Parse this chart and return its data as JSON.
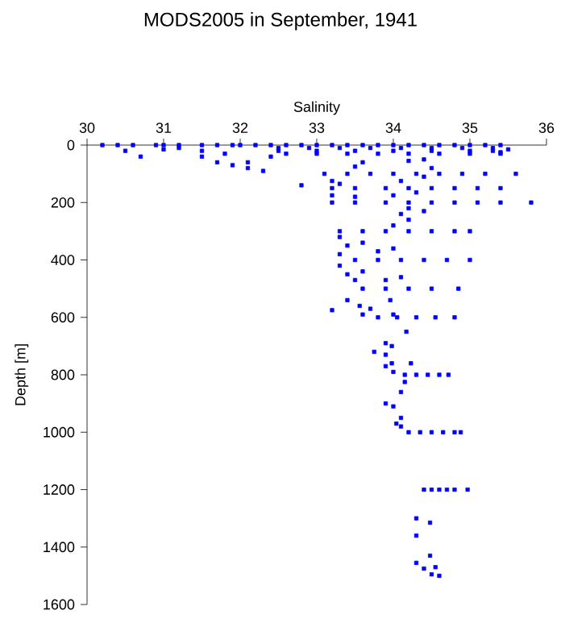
{
  "chart_data": {
    "type": "scatter",
    "title": "MODS2005 in September, 1941",
    "xlabel": "Salinity",
    "ylabel": "Depth [m]",
    "xlim": [
      30,
      36
    ],
    "xticks": [
      30,
      31,
      32,
      33,
      34,
      35,
      36
    ],
    "ylim": [
      1600,
      0
    ],
    "yticks": [
      0,
      200,
      400,
      600,
      800,
      1000,
      1200,
      1400,
      1600
    ],
    "marker": "square",
    "series": [
      {
        "color": "#0000ff",
        "x": [
          30.2,
          30.4,
          30.6,
          30.9,
          31.0,
          31.2,
          31.5,
          31.7,
          31.9,
          32.0,
          32.2,
          32.4,
          32.6,
          32.8,
          33.0,
          33.2,
          33.4,
          33.6,
          33.8,
          34.0,
          34.2,
          34.4,
          34.6,
          34.8,
          35.0,
          35.2,
          35.4,
          30.5,
          30.7,
          31.0,
          31.2,
          31.5,
          31.5,
          31.8,
          31.9,
          32.1,
          32.3,
          32.1,
          32.4,
          31.7,
          35.5,
          35.4,
          32.5,
          32.9,
          33.3,
          33.7,
          34.1,
          34.5,
          34.9,
          35.3,
          32.5,
          33.0,
          33.5,
          34.0,
          34.5,
          35.0,
          35.3,
          32.6,
          33.0,
          33.4,
          33.8,
          34.2,
          34.6,
          35.0,
          35.4,
          33.6,
          34.2,
          34.4,
          33.5,
          34.5,
          33.1,
          33.4,
          33.7,
          34.0,
          34.3,
          34.6,
          34.9,
          35.2,
          35.6,
          33.2,
          34.1,
          34.4,
          33.3,
          32.8,
          33.2,
          33.5,
          33.9,
          34.2,
          34.5,
          34.8,
          35.1,
          35.4,
          33.2,
          33.5,
          34.0,
          34.3,
          33.2,
          33.5,
          33.9,
          34.2,
          34.5,
          34.8,
          35.1,
          35.4,
          35.8,
          34.2,
          34.1,
          34.2,
          34.4,
          34.0,
          33.3,
          33.6,
          33.9,
          34.2,
          34.5,
          34.8,
          35.0,
          33.3,
          33.4,
          33.6,
          33.8,
          33.3,
          34.0,
          33.5,
          33.8,
          34.1,
          34.4,
          34.7,
          35.0,
          33.3,
          33.4,
          33.6,
          33.9,
          33.5,
          34.1,
          33.6,
          33.9,
          34.2,
          34.5,
          34.85,
          33.4,
          33.96,
          33.56,
          33.2,
          33.7,
          33.6,
          34.0,
          33.8,
          34.05,
          34.3,
          34.55,
          34.8,
          34.17,
          33.9,
          33.98,
          33.75,
          33.9,
          33.98,
          34.23,
          33.9,
          34.0,
          34.15,
          34.3,
          34.45,
          34.6,
          34.72,
          34.15,
          34.1,
          33.9,
          34.0,
          34.1,
          34.04,
          34.1,
          34.2,
          34.35,
          34.5,
          34.65,
          34.8,
          34.88,
          34.4,
          34.5,
          34.6,
          34.7,
          34.8,
          34.97,
          34.3,
          34.48,
          34.3,
          34.48,
          34.3,
          34.4,
          34.55,
          34.5,
          34.6
        ],
        "values": [
          0,
          0,
          0,
          0,
          0,
          0,
          0,
          0,
          0,
          0,
          0,
          0,
          0,
          0,
          0,
          0,
          0,
          0,
          0,
          0,
          0,
          0,
          0,
          0,
          0,
          0,
          0,
          20,
          40,
          15,
          10,
          40,
          20,
          30,
          70,
          80,
          90,
          60,
          40,
          60,
          15,
          25,
          10,
          10,
          10,
          10,
          10,
          10,
          10,
          10,
          20,
          20,
          20,
          20,
          20,
          20,
          20,
          30,
          30,
          30,
          30,
          30,
          30,
          30,
          30,
          60,
          55,
          50,
          75,
          80,
          100,
          100,
          100,
          100,
          100,
          100,
          100,
          100,
          100,
          125,
          125,
          110,
          135,
          140,
          150,
          150,
          150,
          150,
          150,
          150,
          150,
          150,
          175,
          180,
          175,
          165,
          200,
          200,
          200,
          200,
          200,
          200,
          200,
          200,
          200,
          220,
          240,
          260,
          230,
          280,
          300,
          300,
          300,
          300,
          300,
          300,
          300,
          320,
          350,
          340,
          370,
          380,
          360,
          400,
          400,
          400,
          400,
          400,
          400,
          420,
          450,
          440,
          470,
          470,
          460,
          500,
          500,
          500,
          500,
          500,
          540,
          540,
          560,
          575,
          570,
          590,
          590,
          600,
          600,
          600,
          600,
          600,
          650,
          690,
          700,
          720,
          730,
          760,
          760,
          770,
          790,
          800,
          800,
          800,
          800,
          800,
          825,
          860,
          900,
          910,
          950,
          970,
          980,
          1000,
          1000,
          1000,
          1000,
          1000,
          1000,
          1200,
          1200,
          1200,
          1200,
          1200,
          1200,
          1300,
          1315,
          1360,
          1430,
          1455,
          1475,
          1470,
          1495,
          1500
        ]
      }
    ]
  }
}
